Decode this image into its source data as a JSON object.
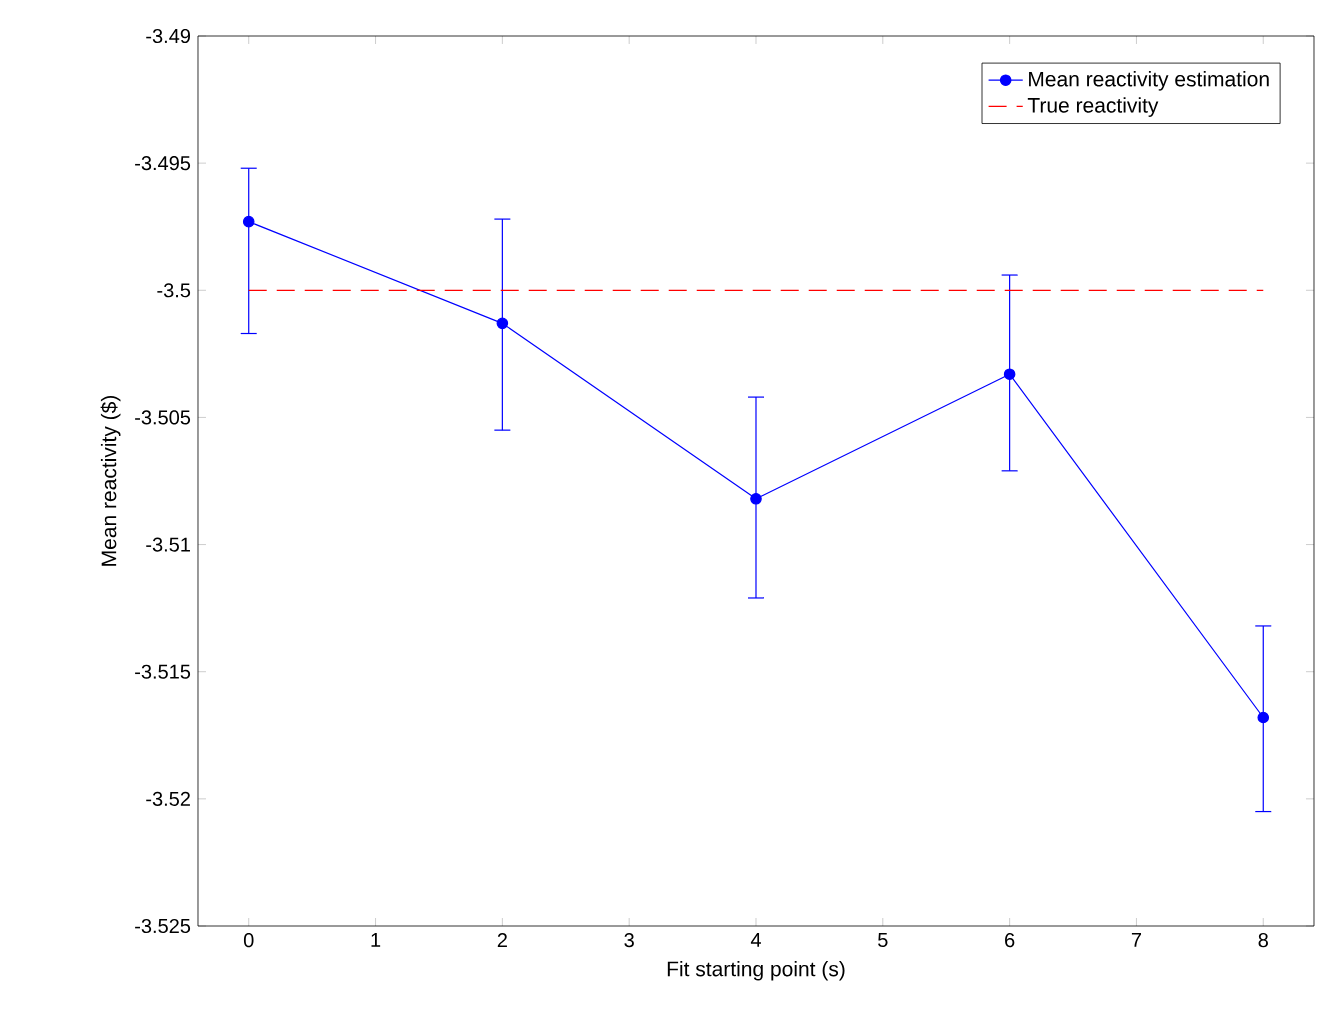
{
  "chart_data": {
    "type": "line",
    "xlabel": "Fit starting point (s)",
    "ylabel": "Mean reactivity ($)",
    "xlim": [
      -0.4,
      8.4
    ],
    "ylim": [
      -3.525,
      -3.49
    ],
    "xticks": [
      0,
      1,
      2,
      3,
      4,
      5,
      6,
      7,
      8
    ],
    "yticks": [
      -3.525,
      -3.52,
      -3.515,
      -3.51,
      -3.505,
      -3.5,
      -3.495,
      -3.49
    ],
    "legend": "top right",
    "grid": false,
    "series": [
      {
        "name": "Mean reactivity estimation",
        "color": "#0000ff",
        "marker": "circle",
        "line_style": "solid",
        "x": [
          0,
          2,
          4,
          6,
          8
        ],
        "values": [
          -3.4973,
          -3.5013,
          -3.5082,
          -3.5033,
          -3.5168
        ],
        "errors": [
          [
            -3.5017,
            -3.4952
          ],
          [
            -3.5055,
            -3.4972
          ],
          [
            -3.5121,
            -3.5042
          ],
          [
            -3.5071,
            -3.4994
          ],
          [
            -3.5205,
            -3.5132
          ]
        ]
      },
      {
        "name": "True reactivity",
        "color": "#ff0000",
        "marker": "none",
        "line_style": "dashed",
        "x": [
          0,
          8
        ],
        "values": [
          -3.5,
          -3.5
        ]
      }
    ]
  }
}
